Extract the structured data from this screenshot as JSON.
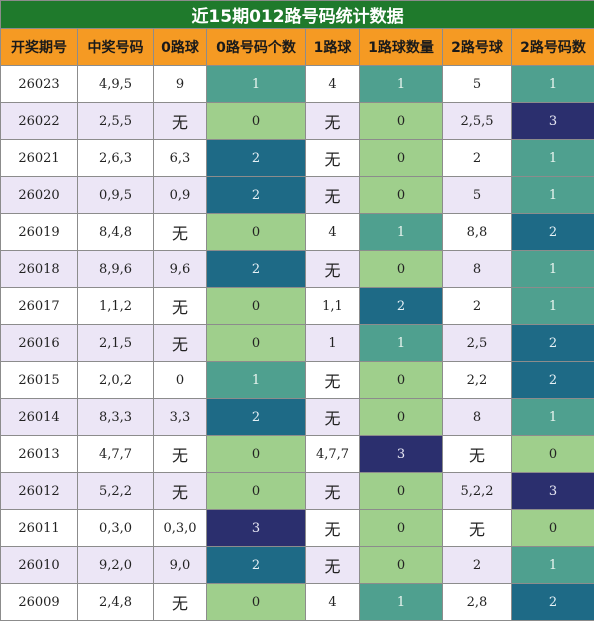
{
  "title": "近15期012路号码统计数据",
  "headers": [
    "开奖期号",
    "中奖号码",
    "0路球",
    "0路号码个数",
    "1路球",
    "1路球数量",
    "2路号球",
    "2路号码数"
  ],
  "rows": [
    [
      "26023",
      "4,9,5",
      "9",
      "1",
      "4",
      "1",
      "5",
      "1"
    ],
    [
      "26022",
      "2,5,5",
      "无",
      "0",
      "无",
      "0",
      "2,5,5",
      "3"
    ],
    [
      "26021",
      "2,6,3",
      "6,3",
      "2",
      "无",
      "0",
      "2",
      "1"
    ],
    [
      "26020",
      "0,9,5",
      "0,9",
      "2",
      "无",
      "0",
      "5",
      "1"
    ],
    [
      "26019",
      "8,4,8",
      "无",
      "0",
      "4",
      "1",
      "8,8",
      "2"
    ],
    [
      "26018",
      "8,9,6",
      "9,6",
      "2",
      "无",
      "0",
      "8",
      "1"
    ],
    [
      "26017",
      "1,1,2",
      "无",
      "0",
      "1,1",
      "2",
      "2",
      "1"
    ],
    [
      "26016",
      "2,1,5",
      "无",
      "0",
      "1",
      "1",
      "2,5",
      "2"
    ],
    [
      "26015",
      "2,0,2",
      "0",
      "1",
      "无",
      "0",
      "2,2",
      "2"
    ],
    [
      "26014",
      "8,3,3",
      "3,3",
      "2",
      "无",
      "0",
      "8",
      "1"
    ],
    [
      "26013",
      "4,7,7",
      "无",
      "0",
      "4,7,7",
      "3",
      "无",
      "0"
    ],
    [
      "26012",
      "5,2,2",
      "无",
      "0",
      "无",
      "0",
      "5,2,2",
      "3"
    ],
    [
      "26011",
      "0,3,0",
      "0,3,0",
      "3",
      "无",
      "0",
      "无",
      "0"
    ],
    [
      "26010",
      "9,2,0",
      "9,0",
      "2",
      "无",
      "0",
      "2",
      "1"
    ],
    [
      "26009",
      "2,4,8",
      "无",
      "0",
      "4",
      "1",
      "2,8",
      "2"
    ]
  ],
  "colors": {
    "title_bg": "#1f7a2c",
    "header_bg": "#f59a23",
    "count_0": "#9fcf8c",
    "count_1": "#4fa08f",
    "count_2": "#1e6a86",
    "count_3": "#2b2f6e",
    "stripe": "#ece6f6"
  }
}
